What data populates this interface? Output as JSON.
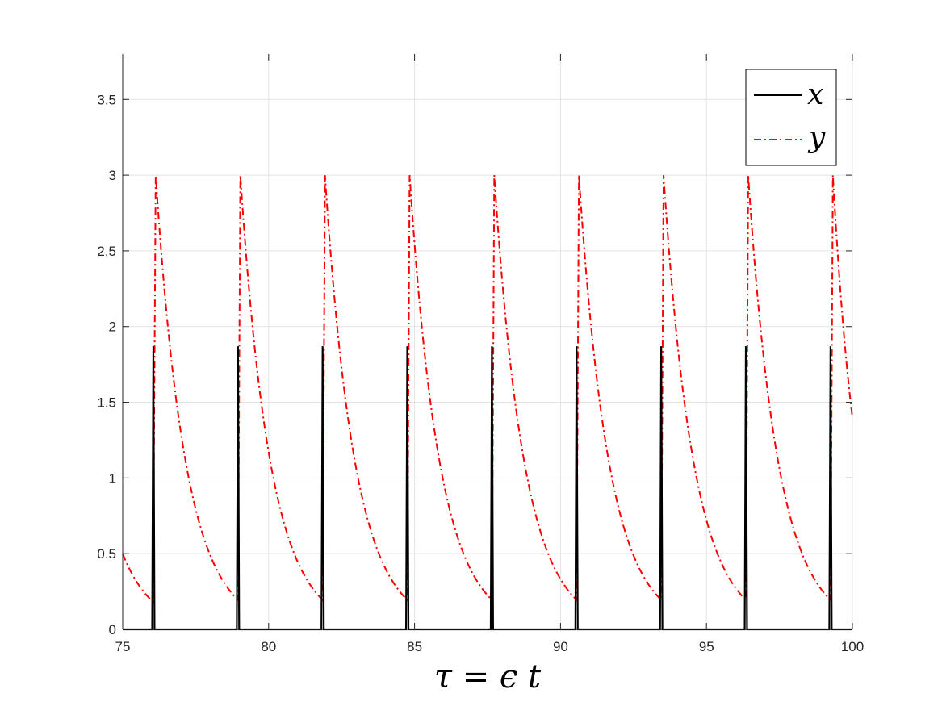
{
  "chart_data": {
    "type": "line",
    "title": "",
    "xlabel": "τ = ϵ t",
    "ylabel": "",
    "xlim": [
      75,
      100
    ],
    "ylim": [
      0,
      3.8
    ],
    "xticks": [
      75,
      80,
      85,
      90,
      95,
      100
    ],
    "yticks": [
      0,
      0.5,
      1,
      1.5,
      2,
      2.5,
      3,
      3.5
    ],
    "xtick_labels": [
      "75",
      "80",
      "85",
      "90",
      "95",
      "100"
    ],
    "ytick_labels": [
      "0",
      "0.5",
      "1",
      "1.5",
      "2",
      "2.5",
      "3",
      "3.5"
    ],
    "grid": true,
    "legend_position": "top-right",
    "spike_times": [
      76.05,
      78.95,
      81.85,
      84.75,
      87.65,
      90.55,
      93.45,
      96.35,
      99.25
    ],
    "series": [
      {
        "name": "x",
        "style": "solid",
        "color": "#000000",
        "description_points": {
          "baseline": 0,
          "spike_peak": 1.87
        }
      },
      {
        "name": "y",
        "style": "dash-dot",
        "color": "#ff0000",
        "description_points": {
          "start_value": 0.5,
          "pre_spike_min": 0.18,
          "spike_peak": 3.0,
          "end_value": 1.4
        }
      }
    ]
  }
}
